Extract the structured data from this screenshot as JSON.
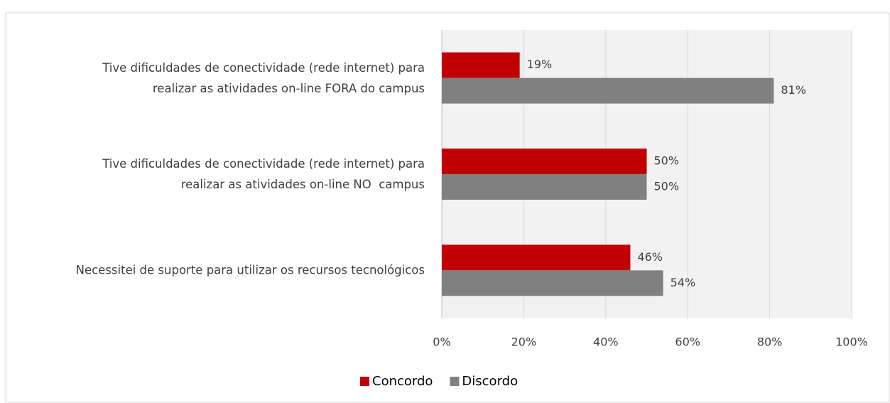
{
  "chart_data": {
    "type": "bar",
    "orientation": "horizontal",
    "categories": [
      "Tive dificuldades de conectividade (rede internet) para\nrealizar as atividades on-line FORA do campus",
      "Tive dificuldades de conectividade (rede internet) para\nrealizar as atividades on-line NO  campus",
      "Necessitei de suporte para utilizar os recursos tecnológicos"
    ],
    "series": [
      {
        "name": "Concordo",
        "color": "#c00000",
        "values": [
          19,
          50,
          46
        ],
        "value_labels": [
          "19%",
          "50%",
          "46%"
        ]
      },
      {
        "name": "Discordo",
        "color": "#808080",
        "values": [
          81,
          50,
          54
        ],
        "value_labels": [
          "81%",
          "50%",
          "54%"
        ]
      }
    ],
    "xlim": [
      0,
      100
    ],
    "xticks": [
      {
        "value": 0,
        "label": "0%"
      },
      {
        "value": 20,
        "label": "20%"
      },
      {
        "value": 40,
        "label": "40%"
      },
      {
        "value": 60,
        "label": "60%"
      },
      {
        "value": 80,
        "label": "80%"
      },
      {
        "value": 100,
        "label": "100%"
      }
    ],
    "grid": true,
    "legend": "bottom"
  }
}
